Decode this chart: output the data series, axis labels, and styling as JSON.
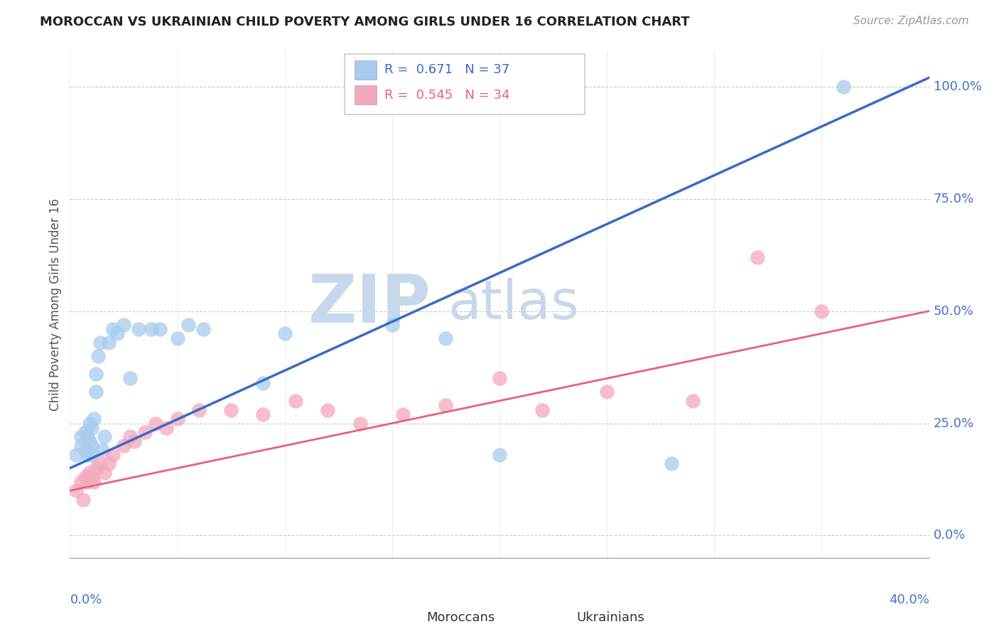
{
  "title": "MOROCCAN VS UKRAINIAN CHILD POVERTY AMONG GIRLS UNDER 16 CORRELATION CHART",
  "source": "Source: ZipAtlas.com",
  "ylabel": "Child Poverty Among Girls Under 16",
  "ylabel_ticks": [
    "0.0%",
    "25.0%",
    "50.0%",
    "75.0%",
    "100.0%"
  ],
  "xlim": [
    0.0,
    0.4
  ],
  "ylim": [
    -0.05,
    1.08
  ],
  "moroccan_R": "0.671",
  "moroccan_N": "37",
  "ukrainian_R": "0.545",
  "ukrainian_N": "34",
  "moroccan_color": "#A8CBEE",
  "ukrainian_color": "#F4A8BC",
  "moroccan_line_color": "#3A6BC4",
  "ukrainian_line_color": "#E8607A",
  "ytick_color": "#4472C4",
  "background_color": "#FFFFFF",
  "moroccan_x": [
    0.003,
    0.005,
    0.005,
    0.007,
    0.007,
    0.008,
    0.008,
    0.009,
    0.009,
    0.01,
    0.01,
    0.01,
    0.011,
    0.012,
    0.012,
    0.013,
    0.014,
    0.015,
    0.016,
    0.018,
    0.02,
    0.022,
    0.025,
    0.028,
    0.032,
    0.038,
    0.042,
    0.05,
    0.055,
    0.062,
    0.09,
    0.1,
    0.15,
    0.175,
    0.2,
    0.28,
    0.36
  ],
  "moroccan_y": [
    0.18,
    0.2,
    0.22,
    0.19,
    0.23,
    0.18,
    0.22,
    0.21,
    0.25,
    0.18,
    0.2,
    0.24,
    0.26,
    0.32,
    0.36,
    0.4,
    0.43,
    0.19,
    0.22,
    0.43,
    0.46,
    0.45,
    0.47,
    0.35,
    0.46,
    0.46,
    0.46,
    0.44,
    0.47,
    0.46,
    0.34,
    0.45,
    0.47,
    0.44,
    0.18,
    0.16,
    1.0
  ],
  "ukrainian_x": [
    0.003,
    0.005,
    0.006,
    0.007,
    0.008,
    0.009,
    0.01,
    0.011,
    0.012,
    0.014,
    0.016,
    0.018,
    0.02,
    0.025,
    0.028,
    0.03,
    0.035,
    0.04,
    0.045,
    0.05,
    0.06,
    0.075,
    0.09,
    0.105,
    0.12,
    0.135,
    0.155,
    0.175,
    0.2,
    0.22,
    0.25,
    0.29,
    0.32,
    0.35
  ],
  "ukrainian_y": [
    0.1,
    0.12,
    0.08,
    0.13,
    0.12,
    0.14,
    0.13,
    0.12,
    0.15,
    0.16,
    0.14,
    0.16,
    0.18,
    0.2,
    0.22,
    0.21,
    0.23,
    0.25,
    0.24,
    0.26,
    0.28,
    0.28,
    0.27,
    0.3,
    0.28,
    0.25,
    0.27,
    0.29,
    0.35,
    0.28,
    0.32,
    0.3,
    0.62,
    0.5
  ],
  "blue_line_x0": 0.0,
  "blue_line_y0": 0.15,
  "blue_line_x1": 0.4,
  "blue_line_y1": 1.02,
  "pink_line_x0": 0.0,
  "pink_line_y0": 0.1,
  "pink_line_x1": 0.4,
  "pink_line_y1": 0.5
}
